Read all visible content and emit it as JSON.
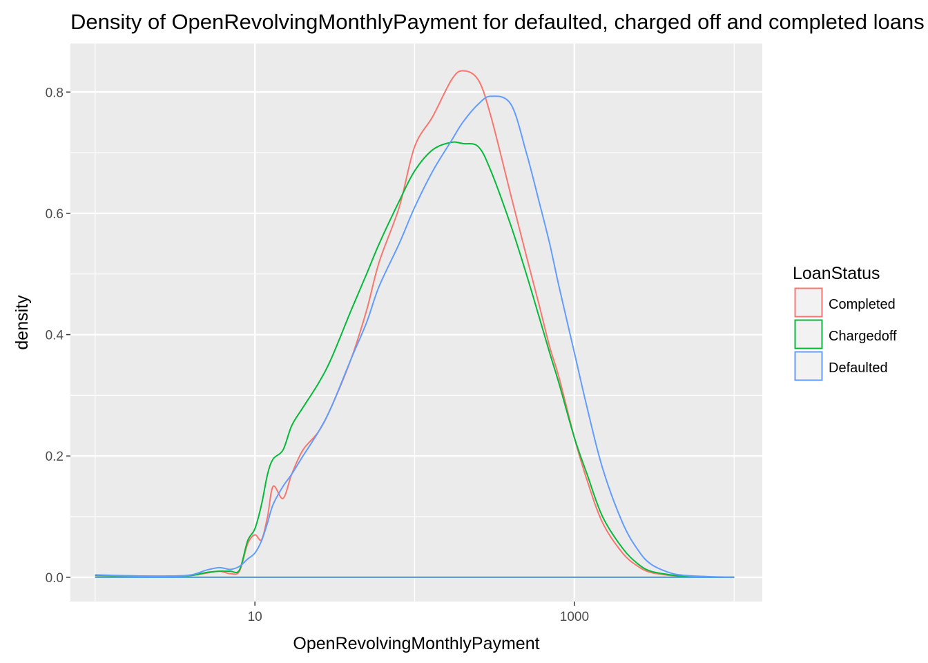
{
  "chart_data": {
    "type": "line",
    "title": "Density of OpenRevolvingMonthlyPayment for defaulted, charged off and completed loans",
    "xlabel": "OpenRevolvingMonthlyPayment",
    "ylabel": "density",
    "x_scale": "log10",
    "xlim": [
      0.7,
      15000
    ],
    "ylim": [
      -0.04,
      0.88
    ],
    "x_ticks": [
      10,
      1000
    ],
    "x_tick_labels": [
      "10",
      "1000"
    ],
    "y_ticks": [
      0.0,
      0.2,
      0.4,
      0.6,
      0.8
    ],
    "y_tick_labels": [
      "0.0",
      "0.2",
      "0.4",
      "0.6",
      "0.8"
    ],
    "grid": true,
    "legend": {
      "title": "LoanStatus",
      "placement": "right"
    },
    "series": [
      {
        "name": "Completed",
        "color": "#F8766D",
        "x": [
          1,
          2,
          3,
          4,
          5,
          6,
          7,
          8,
          9,
          10,
          11,
          12,
          13,
          15,
          17,
          20,
          25,
          30,
          40,
          50,
          60,
          80,
          100,
          130,
          170,
          200,
          250,
          300,
          400,
          500,
          600,
          700,
          800,
          1000,
          1200,
          1500,
          2000,
          2500,
          3000,
          4000,
          5000,
          7000,
          10000
        ],
        "values": [
          0.003,
          0.001,
          0.002,
          0.003,
          0.007,
          0.01,
          0.006,
          0.01,
          0.055,
          0.07,
          0.062,
          0.1,
          0.15,
          0.13,
          0.17,
          0.21,
          0.24,
          0.28,
          0.36,
          0.44,
          0.52,
          0.61,
          0.71,
          0.76,
          0.82,
          0.835,
          0.82,
          0.76,
          0.63,
          0.53,
          0.45,
          0.38,
          0.33,
          0.23,
          0.16,
          0.09,
          0.04,
          0.018,
          0.008,
          0.003,
          0.001,
          0.0,
          0.0
        ]
      },
      {
        "name": "Chargedoff",
        "color": "#00BA38",
        "x": [
          1,
          2,
          3,
          4,
          5,
          6,
          7,
          8,
          9,
          10,
          11,
          12,
          13,
          15,
          17,
          20,
          25,
          30,
          40,
          50,
          60,
          80,
          100,
          130,
          170,
          200,
          250,
          300,
          400,
          500,
          600,
          700,
          800,
          1000,
          1200,
          1500,
          2000,
          2500,
          3000,
          4000,
          5000,
          7000,
          10000
        ],
        "values": [
          0.003,
          0.002,
          0.002,
          0.003,
          0.008,
          0.01,
          0.01,
          0.012,
          0.06,
          0.08,
          0.12,
          0.17,
          0.195,
          0.21,
          0.25,
          0.28,
          0.32,
          0.36,
          0.44,
          0.5,
          0.55,
          0.62,
          0.67,
          0.705,
          0.717,
          0.715,
          0.71,
          0.67,
          0.58,
          0.5,
          0.43,
          0.37,
          0.32,
          0.23,
          0.17,
          0.1,
          0.048,
          0.022,
          0.01,
          0.004,
          0.001,
          0.0,
          0.0
        ]
      },
      {
        "name": "Defaulted",
        "color": "#619CFF",
        "x": [
          1,
          2,
          3,
          4,
          5,
          6,
          7,
          8,
          9,
          10,
          11,
          12,
          13,
          15,
          17,
          20,
          25,
          30,
          40,
          50,
          60,
          80,
          100,
          130,
          170,
          200,
          250,
          300,
          400,
          500,
          600,
          700,
          800,
          1000,
          1200,
          1500,
          2000,
          2500,
          3000,
          4000,
          5000,
          7000,
          10000
        ],
        "values": [
          0.004,
          0.002,
          0.002,
          0.004,
          0.012,
          0.016,
          0.013,
          0.018,
          0.03,
          0.04,
          0.06,
          0.09,
          0.12,
          0.15,
          0.17,
          0.2,
          0.24,
          0.28,
          0.36,
          0.42,
          0.48,
          0.55,
          0.61,
          0.67,
          0.72,
          0.75,
          0.78,
          0.793,
          0.78,
          0.7,
          0.62,
          0.55,
          0.48,
          0.37,
          0.28,
          0.18,
          0.09,
          0.045,
          0.022,
          0.007,
          0.003,
          0.001,
          0.0
        ]
      }
    ]
  }
}
